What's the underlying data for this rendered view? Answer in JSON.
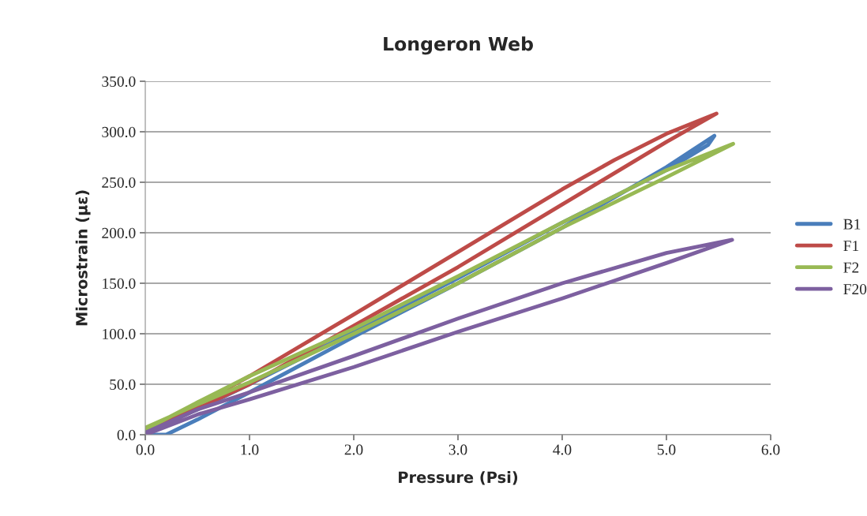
{
  "chart_data": {
    "type": "line",
    "title": "Longeron Web",
    "xlabel": "Pressure (Psi)",
    "ylabel": "Microstrain (με)",
    "xlim": [
      0,
      6
    ],
    "xticks": [
      {
        "value": 0,
        "label": "0.0"
      },
      {
        "value": 1,
        "label": "1.0"
      },
      {
        "value": 2,
        "label": "2.0"
      },
      {
        "value": 3,
        "label": "3.0"
      },
      {
        "value": 4,
        "label": "4.0"
      },
      {
        "value": 5,
        "label": "5.0"
      },
      {
        "value": 6,
        "label": "6.0"
      }
    ],
    "ylim": [
      0,
      350
    ],
    "yticks": [
      {
        "value": 0,
        "label": "0.0"
      },
      {
        "value": 50,
        "label": "50.0"
      },
      {
        "value": 100,
        "label": "100.0"
      },
      {
        "value": 150,
        "label": "150.0"
      },
      {
        "value": 200,
        "label": "200.0"
      },
      {
        "value": 250,
        "label": "250.0"
      },
      {
        "value": 300,
        "label": "300.0"
      },
      {
        "value": 350,
        "label": "350.0"
      }
    ],
    "grid": "y",
    "legend": "right",
    "marker": "none",
    "line_style": "solid",
    "series": [
      {
        "name": "B1",
        "color": "#4a7ebb",
        "x": [
          0.0,
          0.2,
          0.5,
          1.0,
          2.0,
          3.0,
          4.0,
          5.0,
          5.46,
          5.4,
          5.0,
          4.0,
          3.0,
          2.0,
          1.0,
          0.5,
          0.0
        ],
        "values": [
          0,
          0,
          15,
          42,
          97,
          150,
          205,
          265,
          296,
          287,
          262,
          210,
          155,
          102,
          50,
          25,
          3
        ]
      },
      {
        "name": "F1",
        "color": "#be4b48",
        "x": [
          0.0,
          0.5,
          1.0,
          2.0,
          3.0,
          4.0,
          5.0,
          5.48,
          5.0,
          4.5,
          4.0,
          3.0,
          2.0,
          1.0,
          0.5,
          0.0
        ],
        "values": [
          2,
          26,
          50,
          108,
          166,
          228,
          290,
          318,
          298,
          272,
          243,
          181,
          119,
          58,
          30,
          3
        ]
      },
      {
        "name": "F2",
        "color": "#98b954",
        "x": [
          0.0,
          0.5,
          1.0,
          2.0,
          3.0,
          4.0,
          5.0,
          5.64,
          5.0,
          4.0,
          3.0,
          2.0,
          1.0,
          0.5,
          0.0
        ],
        "values": [
          7,
          30,
          52,
          100,
          150,
          205,
          255,
          288,
          262,
          210,
          157,
          105,
          58,
          32,
          5
        ]
      },
      {
        "name": "F20",
        "color": "#7d60a0",
        "x": [
          0.0,
          0.5,
          1.0,
          2.0,
          3.0,
          4.0,
          5.0,
          5.63,
          5.0,
          4.0,
          3.0,
          2.0,
          1.0,
          0.5,
          0.0
        ],
        "values": [
          0,
          20,
          35,
          67,
          102,
          135,
          170,
          193,
          180,
          150,
          115,
          78,
          42,
          25,
          2
        ]
      }
    ]
  }
}
